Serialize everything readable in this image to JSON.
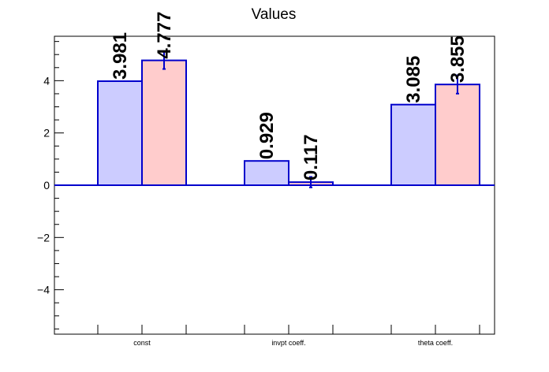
{
  "chart_data": {
    "type": "bar",
    "title": "Values",
    "xlabel": "",
    "ylabel": "",
    "categories": [
      "const",
      "invpt coeff.",
      "theta coeff."
    ],
    "ylim": [
      -5.7,
      5.7
    ],
    "yticks": [
      -4,
      -2,
      0,
      2,
      4
    ],
    "ytick_labels": [
      "−4",
      "−2",
      "0",
      "2",
      "4"
    ],
    "grid": false,
    "legend": "none",
    "series": [
      {
        "color": "#ccccff",
        "edge_color": "#0000cc",
        "values": [
          3.981,
          0.929,
          3.085
        ],
        "labels": [
          "3.981",
          "0.929",
          "3.085"
        ],
        "errors": [
          0,
          0,
          0
        ]
      },
      {
        "color": "#ffcccc",
        "edge_color": "#0000cc",
        "values": [
          4.777,
          0.117,
          3.855
        ],
        "labels": [
          "4.777",
          "0.117",
          "3.855"
        ],
        "errors": [
          0.33,
          0.2,
          0.35
        ]
      }
    ]
  }
}
